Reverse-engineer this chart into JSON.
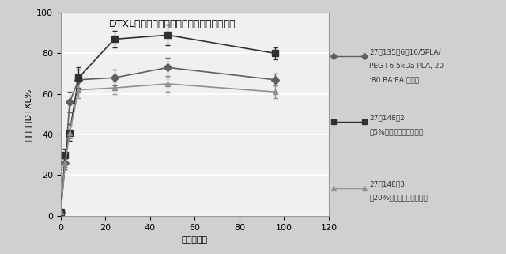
{
  "title": "DTXL放出に対するセチルアルコールの効果",
  "xlabel": "時間（時）",
  "ylabel": "累計放出DTXL%",
  "xlim": [
    0,
    120
  ],
  "ylim": [
    0,
    100
  ],
  "xticks": [
    0,
    20,
    40,
    60,
    80,
    100,
    120
  ],
  "yticks": [
    0,
    20,
    40,
    60,
    80,
    100
  ],
  "series": [
    {
      "label1": "27－135－6（16/5PLA/",
      "label2": "PEG+6.5kDa PLA, 20",
      "label3": ":80 BA:EA 対照）",
      "x": [
        0,
        2,
        4,
        8,
        24,
        48,
        96
      ],
      "y": [
        2,
        26,
        56,
        67,
        68,
        73,
        67
      ],
      "yerr": [
        1,
        3,
        5,
        5,
        4,
        5,
        3
      ],
      "color": "#606060",
      "marker": "D",
      "markersize": 5,
      "linestyle": "-"
    },
    {
      "label1": "27－148－2",
      "label2": "（5%セチルアルコール）",
      "label3": "",
      "x": [
        0,
        2,
        4,
        8,
        24,
        48,
        96
      ],
      "y": [
        2,
        30,
        41,
        68,
        87,
        89,
        80
      ],
      "yerr": [
        1,
        3,
        4,
        5,
        4,
        5,
        3
      ],
      "color": "#303030",
      "marker": "s",
      "markersize": 6,
      "linestyle": "-"
    },
    {
      "label1": "27－148－3",
      "label2": "（20%セチルアルコール）",
      "label3": "",
      "x": [
        0,
        2,
        4,
        8,
        24,
        48,
        96
      ],
      "y": [
        2,
        26,
        41,
        62,
        63,
        65,
        61
      ],
      "yerr": [
        1,
        2,
        3,
        4,
        3,
        4,
        3
      ],
      "color": "#909090",
      "marker": "^",
      "markersize": 5,
      "linestyle": "-"
    }
  ],
  "outer_bg": "#d0d0d0",
  "plot_bg": "#f0f0f0",
  "grid_color": "#ffffff",
  "title_fontsize": 9,
  "axis_label_fontsize": 8,
  "tick_fontsize": 8,
  "legend_fontsize": 6.5
}
